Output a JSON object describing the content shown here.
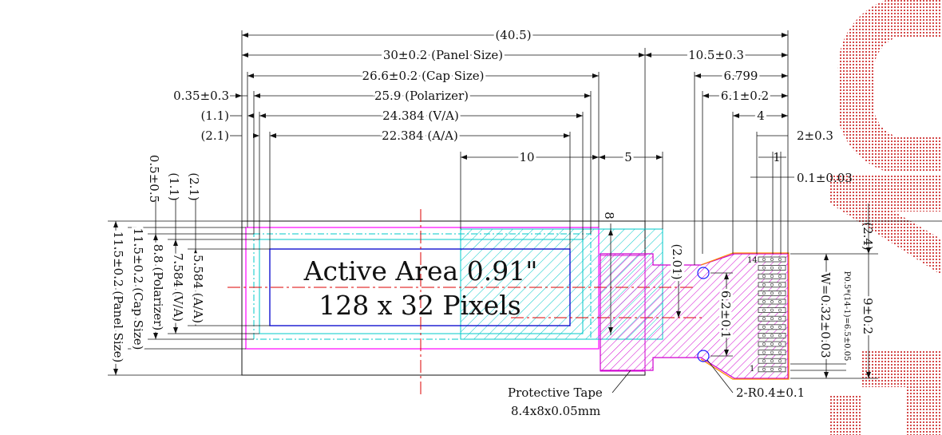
{
  "title": "Active Area 0.91\"",
  "subtitle": "128 x 32 Pixels",
  "colors": {
    "outline": "#111111",
    "polarizer": "#ff00ff",
    "active_area": "#0000cc",
    "hatch_cyan": "#00c8c8",
    "fpc": "#d000d0",
    "fpc_outline": "#ff8a00",
    "centerline": "#dd0000",
    "watermark": "#cc2a2a"
  },
  "horizontal_dims": {
    "overall": "(40.5)",
    "panel": "30±0.2 (Panel Size)",
    "cap": "26.6±0.2 (Cap Size)",
    "polarizer": "25.9 (Polarizer)",
    "va": "24.384 (V/A)",
    "aa": "22.384 (A/A)",
    "edge_035": "0.35±0.3",
    "edge_11": "(1.1)",
    "edge_21": "(2.1)",
    "d10": "10",
    "d5": "5",
    "fpc_len": "10.5±0.3",
    "d6799": "6.799",
    "d61": "6.1±0.2",
    "d4": "4",
    "d2": "2±0.3",
    "d1": "1",
    "d01": "0.1±0.03"
  },
  "vertical_dims": {
    "panel": "11.5±0.2 (Panel Size)",
    "cap": "11.5±0.2 (Cap Size)",
    "polarizer": "8.8 (Polarizer)",
    "va": "7.584 (V/A)",
    "aa": "5.584 (A/A)",
    "d05": "0.5±0.5",
    "d11": "(1.1)",
    "d21": "(2.1)",
    "d8": "8",
    "d201": "(2.01)",
    "d62": "6.2±0.1",
    "d92": "9±0.2",
    "d24": "(2.4)",
    "width": "W=0.32±0.03",
    "pitch": "P0.5*(14-1)=6.5±0.05"
  },
  "pins": {
    "first": "1",
    "last": "14"
  },
  "notes": {
    "tape_line1": "Protective Tape",
    "tape_line2": "8.4x8x0.05mm",
    "hole": "2-R0.4±0.1"
  }
}
